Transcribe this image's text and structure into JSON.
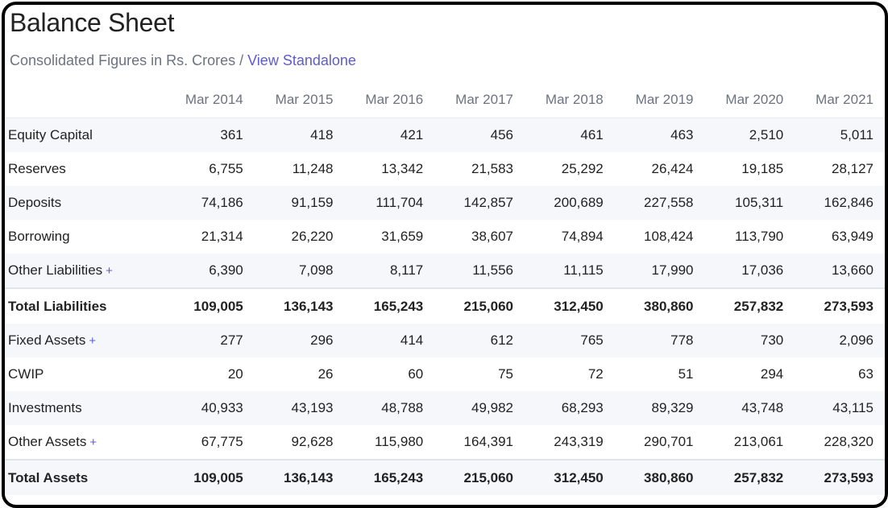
{
  "title": "Balance Sheet",
  "subtitle": {
    "text": "Consolidated Figures in Rs. Crores / ",
    "link": "View Standalone"
  },
  "colors": {
    "accent": "#5b5bd6",
    "muted": "#6b7280",
    "row_shade": "#f6f7fb"
  },
  "table": {
    "headers": [
      "",
      "Mar 2014",
      "Mar 2015",
      "Mar 2016",
      "Mar 2017",
      "Mar 2018",
      "Mar 2019",
      "Mar 2020",
      "Mar 2021"
    ],
    "rows": [
      {
        "label": "Equity Capital",
        "expandable": false,
        "total": false,
        "values": [
          "361",
          "418",
          "421",
          "456",
          "461",
          "463",
          "2,510",
          "5,011"
        ]
      },
      {
        "label": "Reserves",
        "expandable": false,
        "total": false,
        "values": [
          "6,755",
          "11,248",
          "13,342",
          "21,583",
          "25,292",
          "26,424",
          "19,185",
          "28,127"
        ]
      },
      {
        "label": "Deposits",
        "expandable": false,
        "total": false,
        "values": [
          "74,186",
          "91,159",
          "111,704",
          "142,857",
          "200,689",
          "227,558",
          "105,311",
          "162,846"
        ]
      },
      {
        "label": "Borrowing",
        "expandable": false,
        "total": false,
        "values": [
          "21,314",
          "26,220",
          "31,659",
          "38,607",
          "74,894",
          "108,424",
          "113,790",
          "63,949"
        ]
      },
      {
        "label": "Other Liabilities",
        "expandable": true,
        "total": false,
        "values": [
          "6,390",
          "7,098",
          "8,117",
          "11,556",
          "11,115",
          "17,990",
          "17,036",
          "13,660"
        ]
      },
      {
        "label": "Total Liabilities",
        "expandable": false,
        "total": true,
        "values": [
          "109,005",
          "136,143",
          "165,243",
          "215,060",
          "312,450",
          "380,860",
          "257,832",
          "273,593"
        ]
      },
      {
        "label": "Fixed Assets",
        "expandable": true,
        "total": false,
        "values": [
          "277",
          "296",
          "414",
          "612",
          "765",
          "778",
          "730",
          "2,096"
        ]
      },
      {
        "label": "CWIP",
        "expandable": false,
        "total": false,
        "values": [
          "20",
          "26",
          "60",
          "75",
          "72",
          "51",
          "294",
          "63"
        ]
      },
      {
        "label": "Investments",
        "expandable": false,
        "total": false,
        "values": [
          "40,933",
          "43,193",
          "48,788",
          "49,982",
          "68,293",
          "89,329",
          "43,748",
          "43,115"
        ]
      },
      {
        "label": "Other Assets",
        "expandable": true,
        "total": false,
        "values": [
          "67,775",
          "92,628",
          "115,980",
          "164,391",
          "243,319",
          "290,701",
          "213,061",
          "228,320"
        ]
      },
      {
        "label": "Total Assets",
        "expandable": false,
        "total": true,
        "values": [
          "109,005",
          "136,143",
          "165,243",
          "215,060",
          "312,450",
          "380,860",
          "257,832",
          "273,593"
        ]
      }
    ],
    "expand_symbol": "+"
  }
}
